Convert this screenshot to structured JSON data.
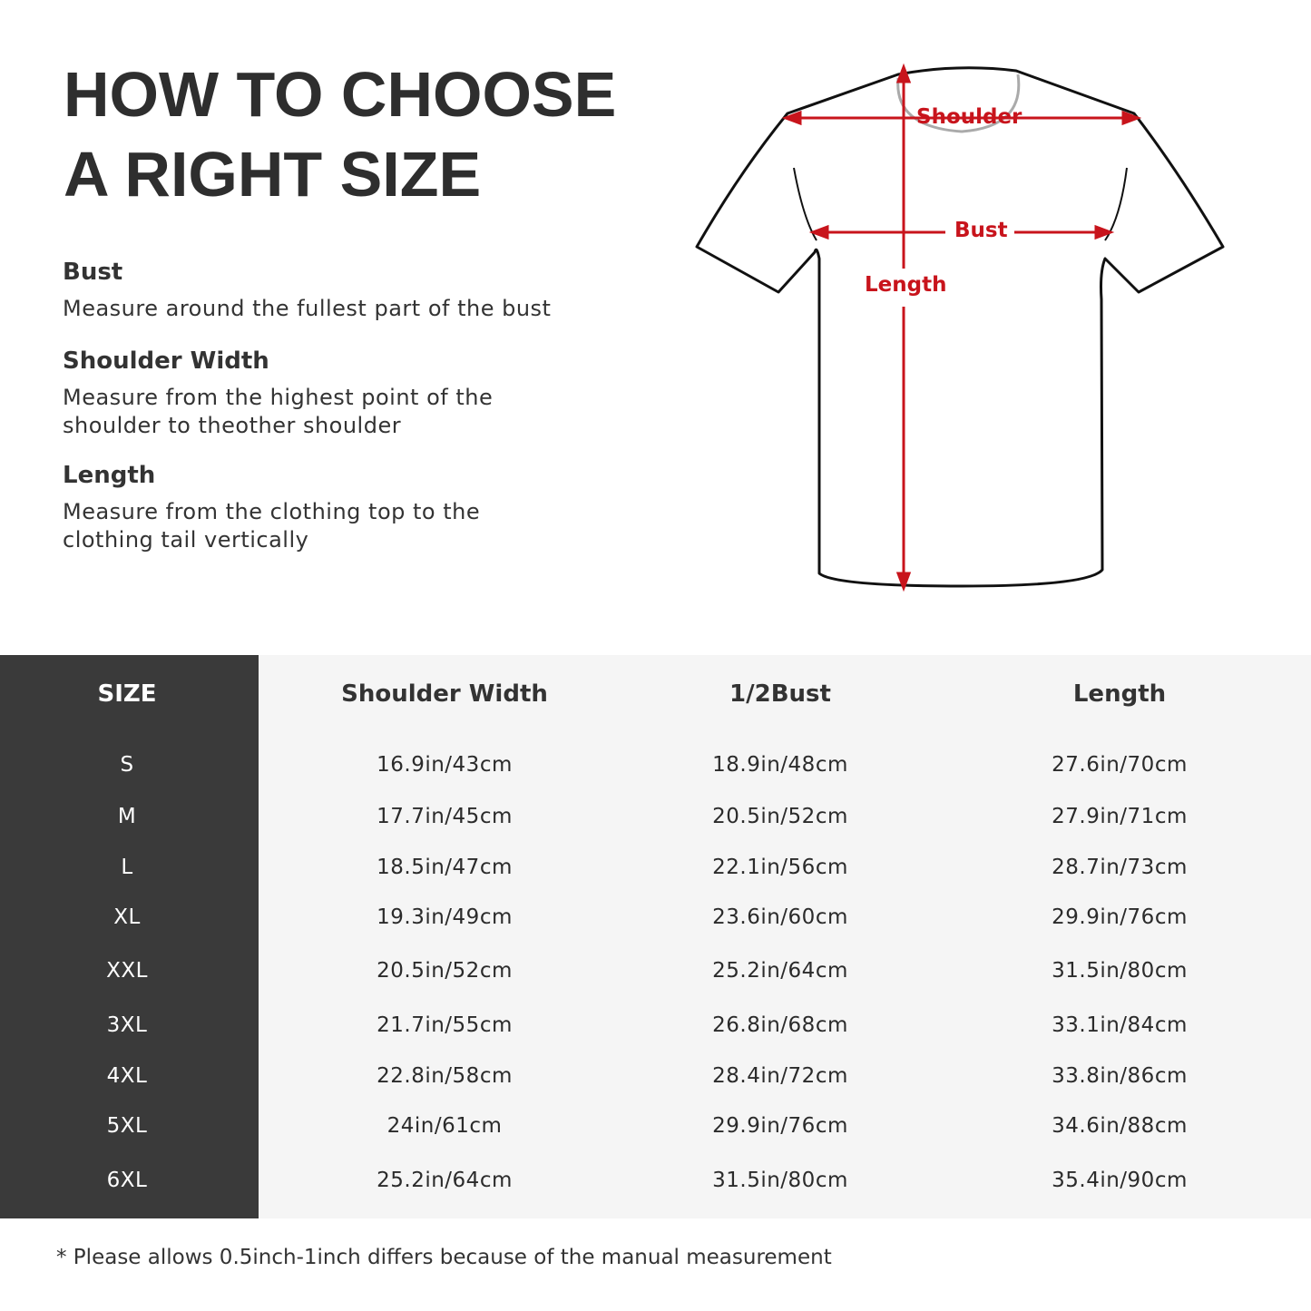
{
  "title": {
    "line1": "HOW TO CHOOSE",
    "line2": "A RIGHT SIZE"
  },
  "guides": [
    {
      "term": "Bust",
      "desc": [
        "Measure around the fullest part of the bust"
      ]
    },
    {
      "term": "Shoulder Width",
      "desc": [
        "Measure from the highest point of the",
        "shoulder to theother shoulder"
      ]
    },
    {
      "term": "Length",
      "desc": [
        "Measure from the clothing top to the",
        "clothing tail vertically"
      ]
    }
  ],
  "diagram": {
    "shoulder": "Shoulder",
    "bust": "Bust",
    "length": "Length",
    "accent_color": "#c8141c"
  },
  "table": {
    "headers": [
      "SIZE",
      "Shoulder Width",
      "1/2Bust",
      "Length"
    ],
    "rows": [
      [
        "S",
        "16.9in/43cm",
        "18.9in/48cm",
        "27.6in/70cm"
      ],
      [
        "M",
        "17.7in/45cm",
        "20.5in/52cm",
        "27.9in/71cm"
      ],
      [
        "L",
        "18.5in/47cm",
        "22.1in/56cm",
        "28.7in/73cm"
      ],
      [
        "XL",
        "19.3in/49cm",
        "23.6in/60cm",
        "29.9in/76cm"
      ],
      [
        "XXL",
        "20.5in/52cm",
        "25.2in/64cm",
        "31.5in/80cm"
      ],
      [
        "3XL",
        "21.7in/55cm",
        "26.8in/68cm",
        "33.1in/84cm"
      ],
      [
        "4XL",
        "22.8in/58cm",
        "28.4in/72cm",
        "33.8in/86cm"
      ],
      [
        "5XL",
        "24in/61cm",
        "29.9in/76cm",
        "34.6in/88cm"
      ],
      [
        "6XL",
        "25.2in/64cm",
        "31.5in/80cm",
        "35.4in/90cm"
      ]
    ]
  },
  "note": "* Please allows 0.5inch-1inch differs because of the  manual measurement"
}
